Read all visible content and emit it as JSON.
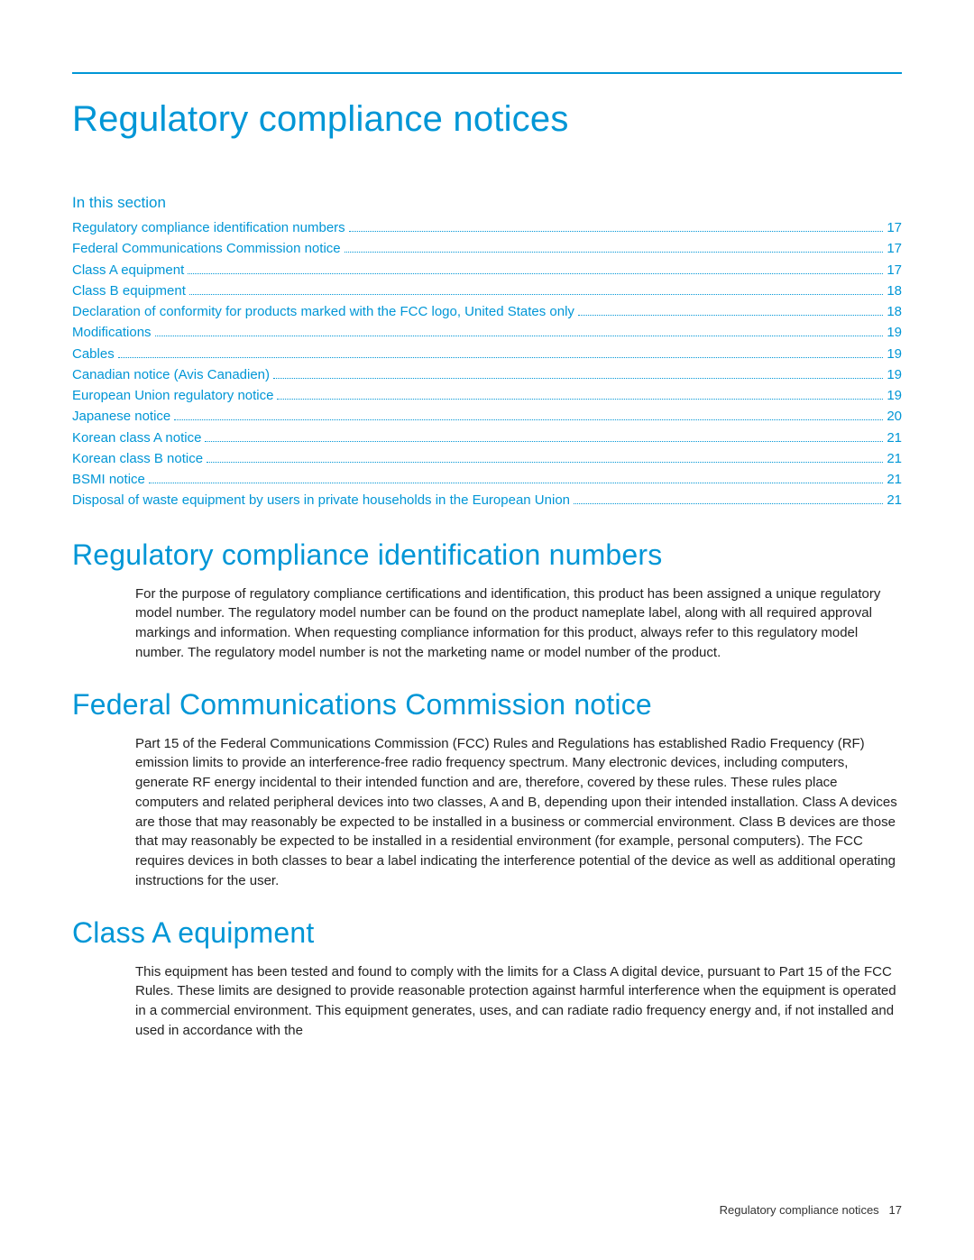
{
  "colors": {
    "accent": "#0096d6",
    "body_text": "#222222",
    "footer_text": "#333333",
    "background": "#ffffff",
    "rule": "#0096d6"
  },
  "typography": {
    "h1_size": 40,
    "h2_size": 32,
    "section_label_size": 17,
    "toc_size": 15,
    "body_size": 15,
    "footer_size": 13,
    "weight_light": 300,
    "weight_regular": 400
  },
  "page_title": "Regulatory compliance notices",
  "section_label": "In this section",
  "toc": [
    {
      "label": "Regulatory compliance identification numbers",
      "page": "17"
    },
    {
      "label": "Federal Communications Commission notice",
      "page": "17"
    },
    {
      "label": "Class A equipment",
      "page": "17"
    },
    {
      "label": "Class B equipment",
      "page": "18"
    },
    {
      "label": "Declaration of conformity for products marked with the FCC logo, United States only",
      "page": "18"
    },
    {
      "label": "Modifications",
      "page": "19"
    },
    {
      "label": "Cables",
      "page": "19"
    },
    {
      "label": "Canadian notice (Avis Canadien)",
      "page": "19"
    },
    {
      "label": "European Union regulatory notice",
      "page": "19"
    },
    {
      "label": "Japanese notice",
      "page": "20"
    },
    {
      "label": "Korean class A notice",
      "page": "21"
    },
    {
      "label": "Korean class B notice",
      "page": "21"
    },
    {
      "label": "BSMI notice",
      "page": "21"
    },
    {
      "label": "Disposal of waste equipment by users in private households in the European Union",
      "page": "21"
    }
  ],
  "sections": [
    {
      "heading": "Regulatory compliance identification numbers",
      "body": "For the purpose of regulatory compliance certifications and identification, this product has been assigned a unique regulatory model number. The regulatory model number can be found on the product nameplate label, along with all required approval markings and information. When requesting compliance information for this product, always refer to this regulatory model number. The regulatory model number is not the marketing name or model number of the product."
    },
    {
      "heading": "Federal Communications Commission notice",
      "body": "Part 15 of the Federal Communications Commission (FCC) Rules and Regulations has established Radio Frequency (RF) emission limits to provide an interference-free radio frequency spectrum. Many electronic devices, including computers, generate RF energy incidental to their intended function and are, therefore, covered by these rules. These rules place computers and related peripheral devices into two classes, A and B, depending upon their intended installation. Class A devices are those that may reasonably be expected to be installed in a business or commercial environment. Class B devices are those that may reasonably be expected to be installed in a residential environment (for example, personal computers). The FCC requires devices in both classes to bear a label indicating the interference potential of the device as well as additional operating instructions for the user."
    },
    {
      "heading": "Class A equipment",
      "body": "This equipment has been tested and found to comply with the limits for a Class A digital device, pursuant to Part 15 of the FCC Rules. These limits are designed to provide reasonable protection against harmful interference when the equipment is operated in a commercial environment. This equipment generates, uses, and can radiate radio frequency energy and, if not installed and used in accordance with the"
    }
  ],
  "footer": {
    "label": "Regulatory compliance notices",
    "page_number": "17"
  }
}
